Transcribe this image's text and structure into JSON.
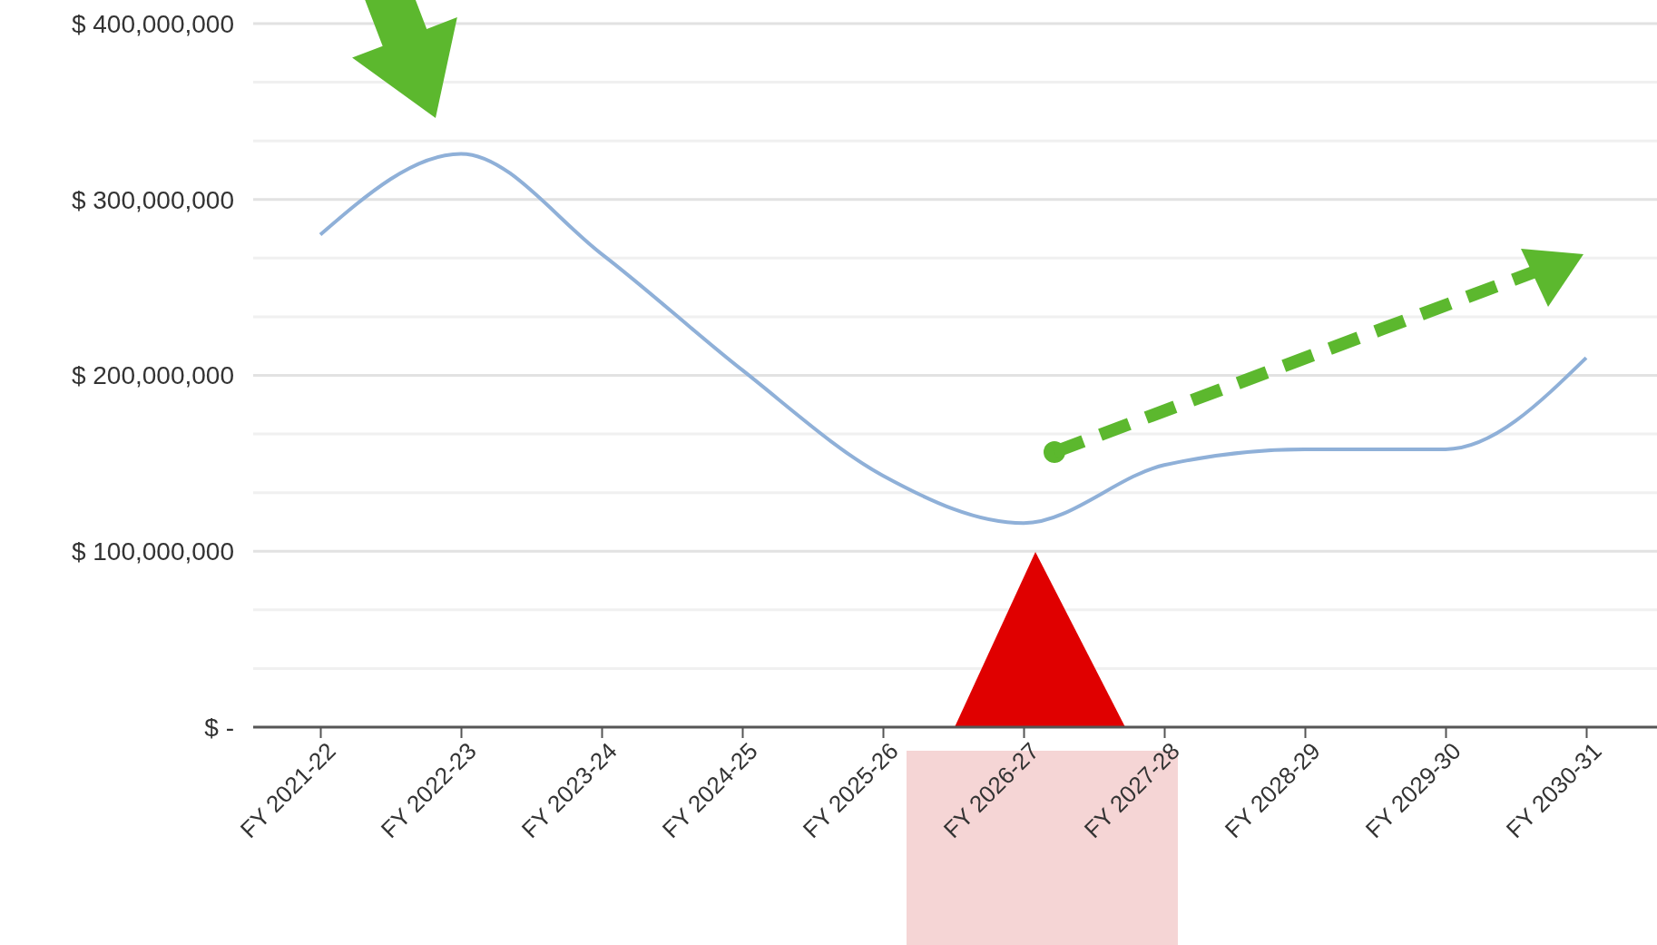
{
  "chart_data": {
    "type": "line",
    "categories": [
      "FY 2021-22",
      "FY 2022-23",
      "FY 2023-24",
      "FY 2024-25",
      "FY 2025-26",
      "FY 2026-27",
      "FY 2027-28",
      "FY 2028-29",
      "FY 2029-30",
      "FY 2030-31"
    ],
    "series": [
      {
        "color": "#8fb0d8",
        "values": [
          280000000,
          326000000,
          269000000,
          203000000,
          143000000,
          116000000,
          149000000,
          158000000,
          158000000,
          210000000
        ]
      }
    ],
    "ylim": [
      0,
      400000000
    ],
    "yticks": [
      {
        "value": 0,
        "label": "$ -"
      },
      {
        "value": 33333333,
        "label": null
      },
      {
        "value": 66666667,
        "label": null
      },
      {
        "value": 100000000,
        "label": "$ 100,000,000"
      },
      {
        "value": 133333333,
        "label": null
      },
      {
        "value": 166666667,
        "label": null
      },
      {
        "value": 200000000,
        "label": "$ 200,000,000"
      },
      {
        "value": 233333333,
        "label": null
      },
      {
        "value": 266666667,
        "label": null
      },
      {
        "value": 300000000,
        "label": "$ 300,000,000"
      },
      {
        "value": 333333333,
        "label": null
      },
      {
        "value": 366666667,
        "label": null
      },
      {
        "value": 400000000,
        "label": "$ 400,000,000"
      }
    ],
    "grid": "y",
    "marker": "none",
    "line_style": "solid"
  }
}
